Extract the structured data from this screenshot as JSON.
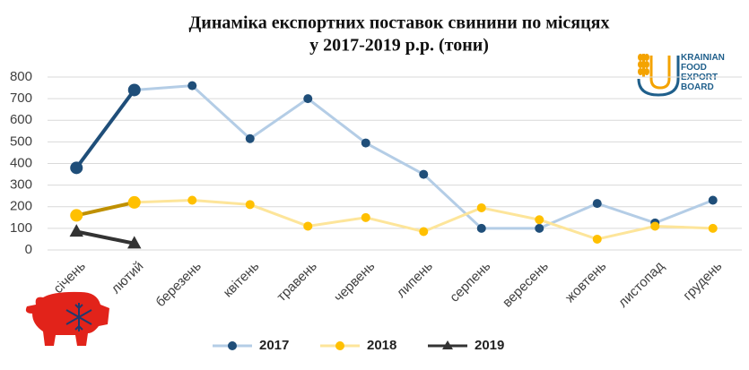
{
  "chart_data": {
    "type": "line",
    "title": "Динаміка експортних поставок свинини по місяцях",
    "subtitle": "у 2017-2019 р.р. (тони)",
    "categories": [
      "січень",
      "лютий",
      "березень",
      "квітень",
      "травень",
      "червень",
      "липень",
      "серпень",
      "вересень",
      "жовтень",
      "листопад",
      "грудень"
    ],
    "series": [
      {
        "name": "2017",
        "color": "#b4cde6",
        "marker_color": "#1f4e79",
        "highlight_color": "#1f4e79",
        "marker": "circle",
        "values": [
          380,
          740,
          760,
          515,
          700,
          495,
          350,
          100,
          100,
          215,
          125,
          230
        ]
      },
      {
        "name": "2018",
        "color": "#fde59a",
        "marker_color": "#ffc000",
        "highlight_color": "#bf9000",
        "marker": "circle",
        "values": [
          160,
          220,
          230,
          210,
          110,
          150,
          85,
          195,
          140,
          50,
          110,
          100
        ]
      },
      {
        "name": "2019",
        "color": "#333333",
        "marker_color": "#333333",
        "highlight_color": "#333333",
        "marker": "triangle",
        "values": [
          85,
          30,
          null,
          null,
          null,
          null,
          null,
          null,
          null,
          null,
          null,
          null
        ]
      }
    ],
    "ylim": [
      0,
      800
    ],
    "yticks": [
      0,
      100,
      200,
      300,
      400,
      500,
      600,
      700,
      800
    ],
    "grid": true,
    "legend": "bottom",
    "logo": [
      "KRAINIAN",
      "FOOD",
      "EXPORT",
      "BOARD"
    ]
  }
}
